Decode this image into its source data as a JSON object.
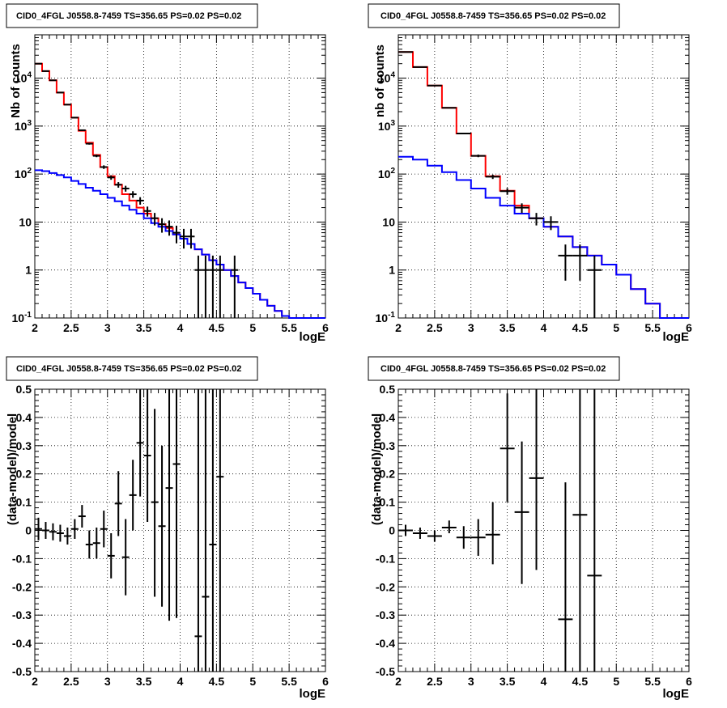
{
  "chart_data": [
    {
      "type": "histogram",
      "title": "CID0_4FGL J0558.8-7459 TS=356.65 PS=0.02 PS=0.02",
      "xlabel": "logE",
      "ylabel": "Nb of counts",
      "xlim": [
        2,
        6
      ],
      "ylim": [
        0.1,
        80000
      ],
      "yscale": "log",
      "grid": true,
      "xticks": [
        "2",
        "2.5",
        "3",
        "3.5",
        "4",
        "4.5",
        "5",
        "5.5",
        "6"
      ],
      "yticks": [
        "10^-1",
        "1",
        "10",
        "10^2",
        "10^3",
        "10^4"
      ],
      "bin_width": 0.1,
      "series": [
        {
          "color": "#ff0000",
          "bin_starts": [
            2.0,
            2.1,
            2.2,
            2.3,
            2.4,
            2.5,
            2.6,
            2.7,
            2.8,
            2.9,
            3.0,
            3.1,
            3.2,
            3.3,
            3.4,
            3.5,
            3.6,
            3.7,
            3.8,
            3.9,
            4.0,
            4.1,
            4.2,
            4.3,
            4.4,
            4.5,
            4.6,
            4.7,
            4.8,
            4.9,
            5.0,
            5.1,
            5.2,
            5.3,
            5.4,
            5.5,
            5.6,
            5.7,
            5.8,
            5.9
          ],
          "values": [
            20000,
            14000,
            9000,
            5000,
            2800,
            1500,
            800,
            450,
            250,
            140,
            90,
            60,
            38,
            28,
            20,
            15,
            12,
            9,
            7.5,
            5.5,
            4.5,
            3.5,
            2.7,
            2.1,
            1.6,
            1.3,
            1.0,
            0.75,
            0.55,
            0.42,
            0.32,
            0.24,
            0.18,
            0.14,
            0.11,
            0.1,
            0.1,
            0.1,
            0.1,
            0.1
          ]
        },
        {
          "color": "#0000ff",
          "bin_starts": [
            2.0,
            2.1,
            2.2,
            2.3,
            2.4,
            2.5,
            2.6,
            2.7,
            2.8,
            2.9,
            3.0,
            3.1,
            3.2,
            3.3,
            3.4,
            3.5,
            3.6,
            3.7,
            3.8,
            3.9,
            4.0,
            4.1,
            4.2,
            4.3,
            4.4,
            4.5,
            4.6,
            4.7,
            4.8,
            4.9,
            5.0,
            5.1,
            5.2,
            5.3,
            5.4,
            5.5,
            5.6,
            5.7,
            5.8,
            5.9
          ],
          "values": [
            120,
            115,
            105,
            95,
            85,
            72,
            62,
            52,
            45,
            38,
            32,
            27,
            22,
            18,
            15,
            12,
            9.5,
            8,
            6.5,
            5.5,
            4.5,
            3.5,
            2.7,
            2.1,
            1.6,
            1.3,
            1.0,
            0.75,
            0.55,
            0.42,
            0.32,
            0.24,
            0.18,
            0.14,
            0.11,
            0.1,
            0.1,
            0.1,
            0.1,
            0.1
          ]
        }
      ],
      "data_points": [
        {
          "x": 2.05,
          "y": 20000,
          "ylo": 19700,
          "yhi": 20300,
          "xerr": 0.05
        },
        {
          "x": 2.15,
          "y": 14000,
          "ylo": 13800,
          "yhi": 14200,
          "xerr": 0.05
        },
        {
          "x": 2.25,
          "y": 9000,
          "ylo": 8850,
          "yhi": 9150,
          "xerr": 0.05
        },
        {
          "x": 2.35,
          "y": 5000,
          "ylo": 4900,
          "yhi": 5100,
          "xerr": 0.05
        },
        {
          "x": 2.45,
          "y": 2800,
          "ylo": 2750,
          "yhi": 2850,
          "xerr": 0.05
        },
        {
          "x": 2.55,
          "y": 1500,
          "ylo": 1460,
          "yhi": 1540,
          "xerr": 0.05
        },
        {
          "x": 2.65,
          "y": 820,
          "ylo": 790,
          "yhi": 850,
          "xerr": 0.05
        },
        {
          "x": 2.75,
          "y": 430,
          "ylo": 410,
          "yhi": 450,
          "xerr": 0.05
        },
        {
          "x": 2.85,
          "y": 240,
          "ylo": 225,
          "yhi": 255,
          "xerr": 0.05
        },
        {
          "x": 2.95,
          "y": 140,
          "ylo": 128,
          "yhi": 152,
          "xerr": 0.05
        },
        {
          "x": 3.05,
          "y": 85,
          "ylo": 76,
          "yhi": 94,
          "xerr": 0.05
        },
        {
          "x": 3.15,
          "y": 60,
          "ylo": 52,
          "yhi": 68,
          "xerr": 0.05
        },
        {
          "x": 3.25,
          "y": 50,
          "ylo": 43,
          "yhi": 57,
          "xerr": 0.05
        },
        {
          "x": 3.35,
          "y": 38,
          "ylo": 32,
          "yhi": 44,
          "xerr": 0.05
        },
        {
          "x": 3.45,
          "y": 28,
          "ylo": 23,
          "yhi": 33,
          "xerr": 0.05
        },
        {
          "x": 3.55,
          "y": 17,
          "ylo": 13,
          "yhi": 21,
          "xerr": 0.05
        },
        {
          "x": 3.65,
          "y": 12,
          "ylo": 8.5,
          "yhi": 15.5,
          "xerr": 0.05
        },
        {
          "x": 3.75,
          "y": 9,
          "ylo": 6,
          "yhi": 12,
          "xerr": 0.05
        },
        {
          "x": 3.85,
          "y": 8,
          "ylo": 5.2,
          "yhi": 10.8,
          "xerr": 0.05
        },
        {
          "x": 3.95,
          "y": 6,
          "ylo": 3.6,
          "yhi": 8.4,
          "xerr": 0.05
        },
        {
          "x": 4.05,
          "y": 5,
          "ylo": 2.8,
          "yhi": 7.2,
          "xerr": 0.05
        },
        {
          "x": 4.15,
          "y": 5,
          "ylo": 2.8,
          "yhi": 7.2,
          "xerr": 0.05
        },
        {
          "x": 4.25,
          "y": 1,
          "ylo": 0.1,
          "yhi": 2,
          "xerr": 0.05
        },
        {
          "x": 4.35,
          "y": 1,
          "ylo": 0.1,
          "yhi": 2,
          "xerr": 0.05
        },
        {
          "x": 4.45,
          "y": 1,
          "ylo": 0.1,
          "yhi": 2,
          "xerr": 0.05
        },
        {
          "x": 4.55,
          "y": 1,
          "ylo": 0.1,
          "yhi": 2,
          "xerr": 0.05
        },
        {
          "x": 4.75,
          "y": 1,
          "ylo": 0.1,
          "yhi": 2,
          "xerr": 0.05
        }
      ]
    },
    {
      "type": "histogram",
      "title": "CID0_4FGL J0558.8-7459 TS=356.65 PS=0.02 PS=0.02",
      "xlabel": "logE",
      "ylabel": "nb of counts",
      "xlim": [
        2,
        6
      ],
      "ylim": [
        0.1,
        80000
      ],
      "yscale": "log",
      "grid": true,
      "xticks": [
        "2",
        "2.5",
        "3",
        "3.5",
        "4",
        "4.5",
        "5",
        "5.5",
        "6"
      ],
      "yticks": [
        "10^-1",
        "1",
        "10",
        "10^2",
        "10^3",
        "10^4"
      ],
      "bin_width": 0.2,
      "series": [
        {
          "color": "#ff0000",
          "bin_starts": [
            2.0,
            2.2,
            2.4,
            2.6,
            2.8,
            3.0,
            3.2,
            3.4,
            3.6,
            3.8,
            4.0,
            4.2,
            4.4,
            4.6,
            4.8,
            5.0,
            5.2,
            5.4,
            5.6,
            5.8
          ],
          "values": [
            35000,
            17000,
            7000,
            2400,
            700,
            240,
            90,
            45,
            22,
            12,
            8,
            5,
            3,
            2,
            1.3,
            0.8,
            0.4,
            0.2,
            0.1,
            0.1
          ]
        },
        {
          "color": "#0000ff",
          "bin_starts": [
            2.0,
            2.2,
            2.4,
            2.6,
            2.8,
            3.0,
            3.2,
            3.4,
            3.6,
            3.8,
            4.0,
            4.2,
            4.4,
            4.6,
            4.8,
            5.0,
            5.2,
            5.4,
            5.6,
            5.8
          ],
          "values": [
            230,
            200,
            150,
            110,
            75,
            50,
            32,
            22,
            15,
            12,
            8,
            5,
            3,
            2,
            1.3,
            0.8,
            0.4,
            0.2,
            0.1,
            0.1
          ]
        }
      ],
      "data_points": [
        {
          "x": 2.1,
          "y": 35000,
          "ylo": 34600,
          "yhi": 35400,
          "xerr": 0.1
        },
        {
          "x": 2.3,
          "y": 17000,
          "ylo": 16700,
          "yhi": 17300,
          "xerr": 0.1
        },
        {
          "x": 2.5,
          "y": 7000,
          "ylo": 6900,
          "yhi": 7100,
          "xerr": 0.1
        },
        {
          "x": 2.7,
          "y": 2400,
          "ylo": 2350,
          "yhi": 2450,
          "xerr": 0.1
        },
        {
          "x": 2.9,
          "y": 700,
          "ylo": 675,
          "yhi": 725,
          "xerr": 0.1
        },
        {
          "x": 3.1,
          "y": 240,
          "ylo": 225,
          "yhi": 255,
          "xerr": 0.1
        },
        {
          "x": 3.3,
          "y": 88,
          "ylo": 79,
          "yhi": 97,
          "xerr": 0.1
        },
        {
          "x": 3.5,
          "y": 44,
          "ylo": 37,
          "yhi": 51,
          "xerr": 0.1
        },
        {
          "x": 3.7,
          "y": 20,
          "ylo": 15.5,
          "yhi": 24.5,
          "xerr": 0.1
        },
        {
          "x": 3.9,
          "y": 12,
          "ylo": 8.5,
          "yhi": 15.5,
          "xerr": 0.1
        },
        {
          "x": 4.1,
          "y": 10,
          "ylo": 6.8,
          "yhi": 13.2,
          "xerr": 0.1
        },
        {
          "x": 4.3,
          "y": 2,
          "ylo": 0.6,
          "yhi": 3.4,
          "xerr": 0.1
        },
        {
          "x": 4.5,
          "y": 2,
          "ylo": 0.6,
          "yhi": 3.4,
          "xerr": 0.1
        },
        {
          "x": 4.7,
          "y": 1,
          "ylo": 0.1,
          "yhi": 2,
          "xerr": 0.1
        }
      ]
    },
    {
      "type": "scatter",
      "title": "CID0_4FGL J0558.8-7459 TS=356.65 PS=0.02 PS=0.02",
      "xlabel": "logE",
      "ylabel": "(data-model)/model",
      "xlim": [
        2,
        6
      ],
      "ylim": [
        -0.5,
        0.5
      ],
      "grid": true,
      "xticks": [
        "2",
        "2.5",
        "3",
        "3.5",
        "4",
        "4.5",
        "5",
        "5.5",
        "6"
      ],
      "yticks": [
        "-0.5",
        "-0.4",
        "-0.3",
        "-0.2",
        "-0.1",
        "0",
        "0.1",
        "0.2",
        "0.3",
        "0.4",
        "0.5"
      ],
      "points": [
        {
          "x": 2.05,
          "y": 0.005,
          "ylo": -0.035,
          "yhi": 0.045,
          "xerr": 0.05
        },
        {
          "x": 2.15,
          "y": 0.0,
          "ylo": -0.03,
          "yhi": 0.03,
          "xerr": 0.05
        },
        {
          "x": 2.25,
          "y": -0.005,
          "ylo": -0.035,
          "yhi": 0.025,
          "xerr": 0.05
        },
        {
          "x": 2.35,
          "y": -0.01,
          "ylo": -0.04,
          "yhi": 0.02,
          "xerr": 0.05
        },
        {
          "x": 2.45,
          "y": -0.02,
          "ylo": -0.05,
          "yhi": 0.01,
          "xerr": 0.05
        },
        {
          "x": 2.55,
          "y": 0.005,
          "ylo": -0.03,
          "yhi": 0.04,
          "xerr": 0.05
        },
        {
          "x": 2.65,
          "y": 0.05,
          "ylo": 0.01,
          "yhi": 0.09,
          "xerr": 0.05
        },
        {
          "x": 2.75,
          "y": -0.05,
          "ylo": -0.1,
          "yhi": 0.0,
          "xerr": 0.05
        },
        {
          "x": 2.85,
          "y": -0.045,
          "ylo": -0.1,
          "yhi": 0.01,
          "xerr": 0.05
        },
        {
          "x": 2.95,
          "y": 0.005,
          "ylo": -0.06,
          "yhi": 0.07,
          "xerr": 0.05
        },
        {
          "x": 3.05,
          "y": -0.09,
          "ylo": -0.17,
          "yhi": -0.01,
          "xerr": 0.05
        },
        {
          "x": 3.15,
          "y": 0.095,
          "ylo": -0.02,
          "yhi": 0.21,
          "xerr": 0.05
        },
        {
          "x": 3.25,
          "y": -0.095,
          "ylo": -0.23,
          "yhi": 0.04,
          "xerr": 0.05
        },
        {
          "x": 3.35,
          "y": 0.125,
          "ylo": 0.0,
          "yhi": 0.25,
          "xerr": 0.05
        },
        {
          "x": 3.45,
          "y": 0.31,
          "ylo": 0.12,
          "yhi": 0.5,
          "xerr": 0.05
        },
        {
          "x": 3.55,
          "y": 0.265,
          "ylo": 0.03,
          "yhi": 0.5,
          "xerr": 0.05
        },
        {
          "x": 3.65,
          "y": 0.1,
          "ylo": -0.235,
          "yhi": 0.43,
          "xerr": 0.05
        },
        {
          "x": 3.75,
          "y": 0.015,
          "ylo": -0.27,
          "yhi": 0.3,
          "xerr": 0.05
        },
        {
          "x": 3.85,
          "y": 0.15,
          "ylo": -0.32,
          "yhi": 0.5,
          "xerr": 0.05
        },
        {
          "x": 3.95,
          "y": 0.235,
          "ylo": -0.31,
          "yhi": 0.5,
          "xerr": 0.05
        },
        {
          "x": 4.25,
          "y": -0.375,
          "ylo": -0.5,
          "yhi": 0.5,
          "xerr": 0.05
        },
        {
          "x": 4.35,
          "y": -0.235,
          "ylo": -0.5,
          "yhi": 0.5,
          "xerr": 0.05
        },
        {
          "x": 4.45,
          "y": -0.05,
          "ylo": -0.5,
          "yhi": 0.5,
          "xerr": 0.05
        },
        {
          "x": 4.55,
          "y": 0.19,
          "ylo": -0.5,
          "yhi": 0.5,
          "xerr": 0.05
        }
      ]
    },
    {
      "type": "scatter",
      "title": "CID0_4FGL J0558.8-7459 TS=356.65 PS=0.02 PS=0.02",
      "xlabel": "logE",
      "ylabel": "(data-model)/model",
      "xlim": [
        2,
        6
      ],
      "ylim": [
        -0.5,
        0.5
      ],
      "grid": true,
      "xticks": [
        "2",
        "2.5",
        "3",
        "3.5",
        "4",
        "4.5",
        "5",
        "5.5",
        "6"
      ],
      "yticks": [
        "-0.5",
        "-0.4",
        "-0.3",
        "-0.2",
        "-0.1",
        "0",
        "0.1",
        "0.2",
        "0.3",
        "0.4",
        "0.5"
      ],
      "points": [
        {
          "x": 2.1,
          "y": 0.0,
          "ylo": -0.02,
          "yhi": 0.02,
          "xerr": 0.1
        },
        {
          "x": 2.3,
          "y": -0.01,
          "ylo": -0.03,
          "yhi": 0.01,
          "xerr": 0.1
        },
        {
          "x": 2.5,
          "y": -0.02,
          "ylo": -0.04,
          "yhi": 0.0,
          "xerr": 0.1
        },
        {
          "x": 2.7,
          "y": 0.01,
          "ylo": -0.01,
          "yhi": 0.035,
          "xerr": 0.1
        },
        {
          "x": 2.9,
          "y": -0.025,
          "ylo": -0.065,
          "yhi": 0.015,
          "xerr": 0.1
        },
        {
          "x": 3.1,
          "y": -0.025,
          "ylo": -0.09,
          "yhi": 0.04,
          "xerr": 0.1
        },
        {
          "x": 3.3,
          "y": -0.015,
          "ylo": -0.12,
          "yhi": 0.1,
          "xerr": 0.1
        },
        {
          "x": 3.5,
          "y": 0.29,
          "ylo": 0.1,
          "yhi": 0.485,
          "xerr": 0.1
        },
        {
          "x": 3.7,
          "y": 0.065,
          "ylo": -0.19,
          "yhi": 0.315,
          "xerr": 0.1
        },
        {
          "x": 3.9,
          "y": 0.185,
          "ylo": -0.14,
          "yhi": 0.5,
          "xerr": 0.1
        },
        {
          "x": 4.3,
          "y": -0.315,
          "ylo": -0.5,
          "yhi": 0.17,
          "xerr": 0.1
        },
        {
          "x": 4.5,
          "y": 0.055,
          "ylo": -0.5,
          "yhi": 0.5,
          "xerr": 0.1
        },
        {
          "x": 4.7,
          "y": -0.16,
          "ylo": -0.5,
          "yhi": 0.5,
          "xerr": 0.1
        }
      ]
    }
  ]
}
